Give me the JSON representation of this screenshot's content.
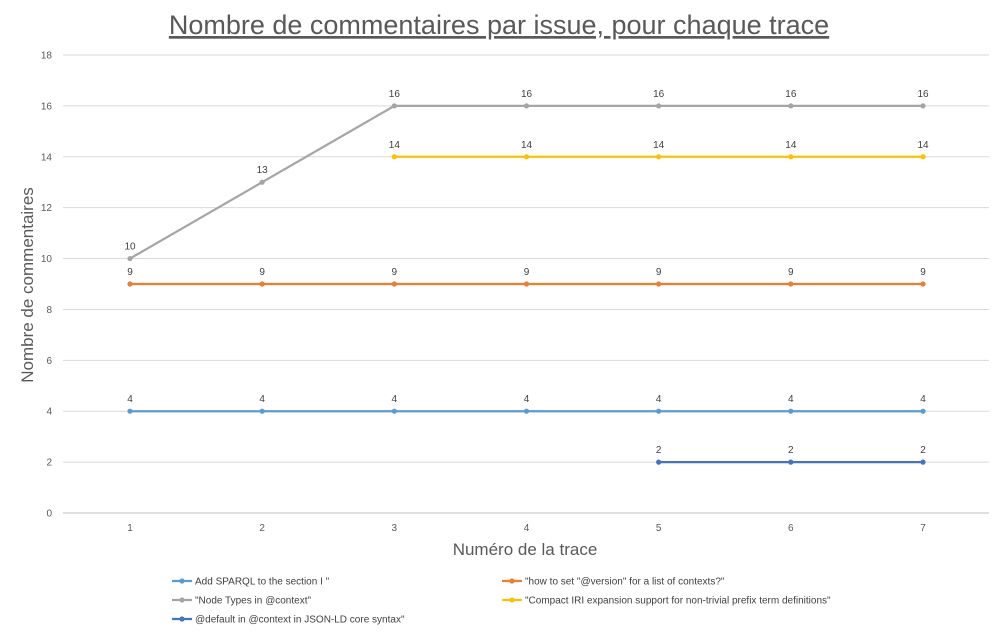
{
  "chart_data": {
    "type": "line",
    "title": "Nombre de commentaires par issue, pour chaque trace",
    "xlabel": "Numéro de la trace",
    "ylabel": "Nombre de commentaires",
    "categories": [
      "1",
      "2",
      "3",
      "4",
      "5",
      "6",
      "7"
    ],
    "ylim": [
      0,
      18
    ],
    "yticks": [
      0,
      2,
      4,
      6,
      8,
      10,
      12,
      14,
      16,
      18
    ],
    "grid": true,
    "legend_position": "bottom",
    "series": [
      {
        "name": "Add SPARQL to the section I \"",
        "color": "#5B9BD5",
        "values": [
          4,
          4,
          4,
          4,
          4,
          4,
          4
        ]
      },
      {
        "name": "\"how to set \"@version\" for a list of contexts?\"",
        "color": "#ED7D31",
        "values": [
          9,
          9,
          9,
          9,
          9,
          9,
          9
        ]
      },
      {
        "name": "\"Node Types in @context\"",
        "color": "#A5A5A5",
        "values": [
          10,
          13,
          16,
          16,
          16,
          16,
          16
        ]
      },
      {
        "name": "\"Compact IRI expansion support for non-trivial prefix term definitions\"",
        "color": "#FFC000",
        "values": [
          null,
          null,
          14,
          14,
          14,
          14,
          14
        ]
      },
      {
        "name": "@default in @context in JSON-LD core syntax\"",
        "color": "#4472C4",
        "values": [
          null,
          null,
          null,
          null,
          2,
          2,
          2
        ]
      }
    ]
  }
}
